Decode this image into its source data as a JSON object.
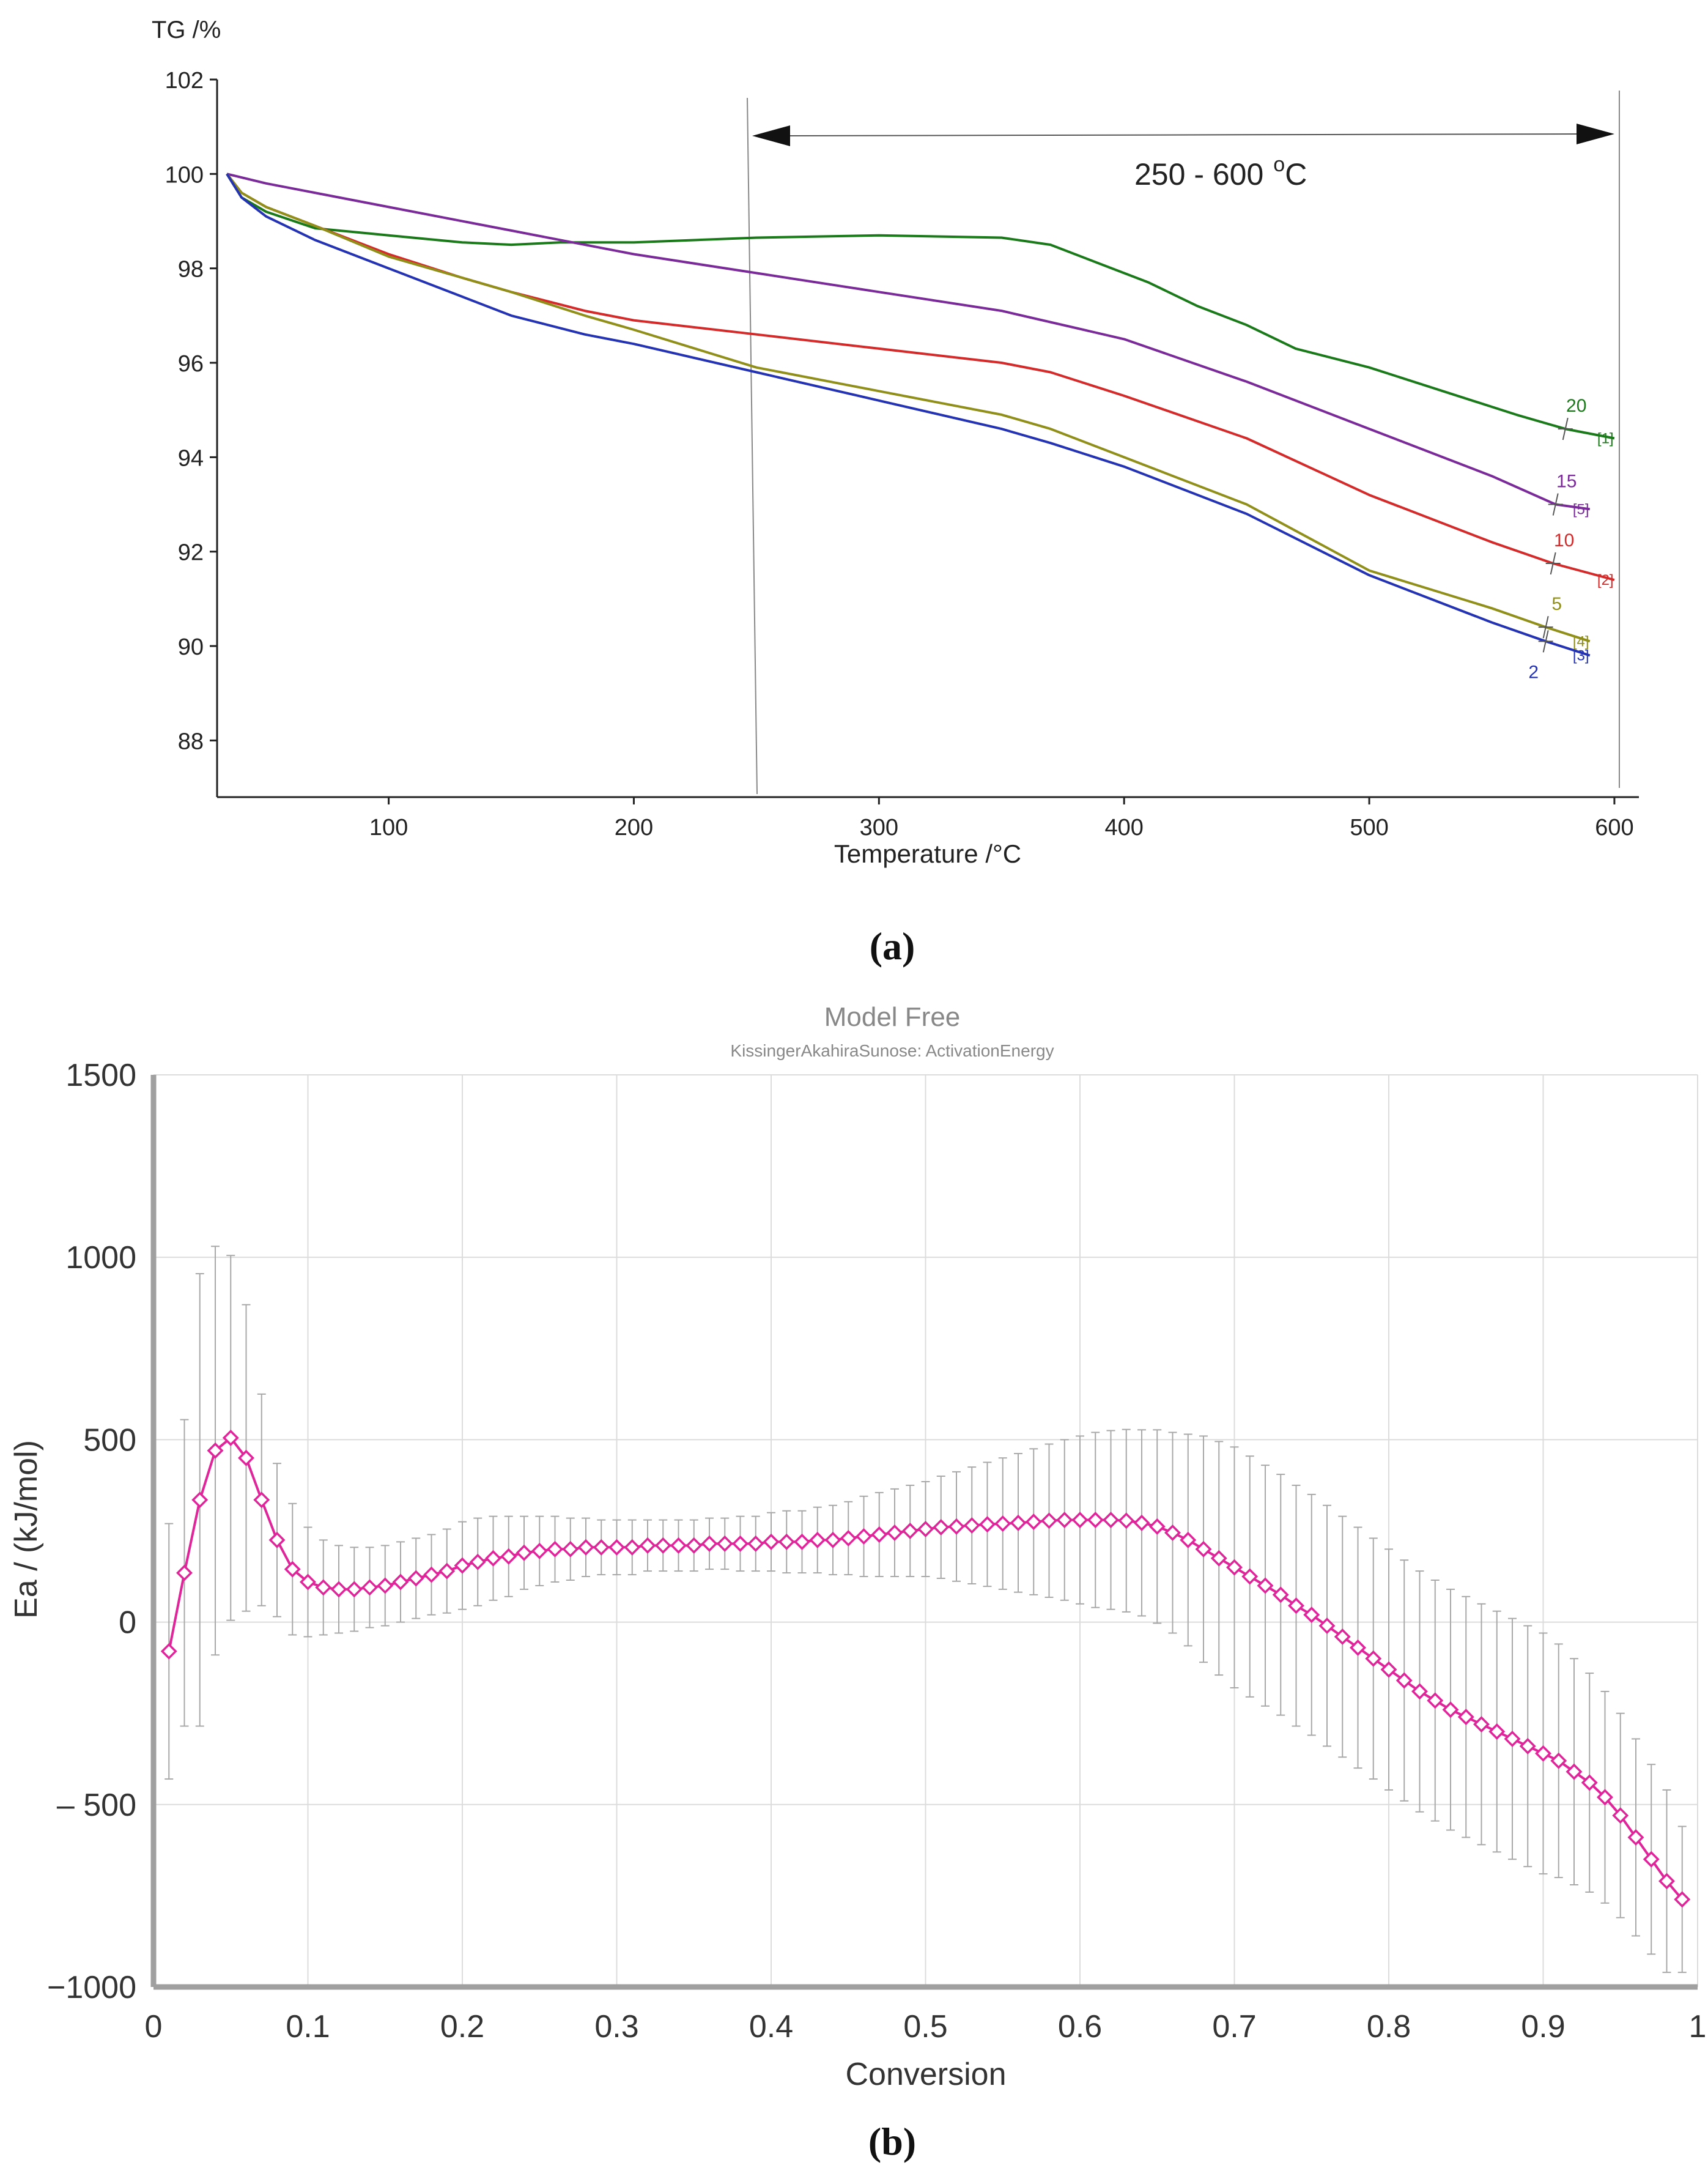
{
  "chart_data": [
    {
      "type": "line",
      "panel_label": "(a)",
      "ylabel": "TG /%",
      "xlabel": "Temperature /°C",
      "xlim": [
        30,
        610
      ],
      "ylim": [
        86.8,
        102
      ],
      "xticks": [
        100,
        200,
        300,
        400,
        500,
        600
      ],
      "yticks": [
        88,
        90,
        92,
        94,
        96,
        98,
        100,
        102
      ],
      "range_annotation": {
        "text": "250 - 600",
        "unit_sup": "o",
        "unit": "C",
        "from": 250,
        "to": 600,
        "y": 101.1
      },
      "series": [
        {
          "name": "20",
          "tag": "[1]",
          "color": "#1a7a1a",
          "marker_x": 572,
          "x": [
            34,
            40,
            50,
            70,
            100,
            130,
            150,
            170,
            200,
            250,
            300,
            350,
            370,
            390,
            410,
            430,
            450,
            470,
            500,
            530,
            560,
            580,
            600
          ],
          "y": [
            100,
            99.5,
            99.2,
            98.85,
            98.7,
            98.55,
            98.5,
            98.55,
            98.55,
            98.65,
            98.7,
            98.65,
            98.5,
            98.1,
            97.7,
            97.2,
            96.8,
            96.3,
            95.9,
            95.4,
            94.9,
            94.6,
            94.4
          ]
        },
        {
          "name": "15",
          "tag": "[5]",
          "color": "#7b2a9a",
          "marker_x": 576,
          "x": [
            34,
            50,
            100,
            150,
            200,
            250,
            300,
            350,
            400,
            450,
            500,
            550,
            576,
            590
          ],
          "y": [
            100,
            99.8,
            99.3,
            98.8,
            98.3,
            97.9,
            97.5,
            97.1,
            96.5,
            95.6,
            94.6,
            93.6,
            93.0,
            92.9
          ]
        },
        {
          "name": "10",
          "tag": "[2]",
          "color": "#d42a2a",
          "marker_x": 575,
          "x": [
            34,
            40,
            50,
            70,
            100,
            130,
            150,
            180,
            200,
            250,
            300,
            350,
            370,
            400,
            450,
            500,
            550,
            575,
            600
          ],
          "y": [
            100,
            99.6,
            99.3,
            98.9,
            98.3,
            97.8,
            97.5,
            97.1,
            96.9,
            96.6,
            96.3,
            96.0,
            95.8,
            95.3,
            94.4,
            93.2,
            92.2,
            91.75,
            91.4
          ]
        },
        {
          "name": "5",
          "tag": "[4]",
          "color": "#8f8f1a",
          "marker_x": 572,
          "x": [
            34,
            40,
            50,
            70,
            100,
            130,
            150,
            180,
            200,
            250,
            300,
            350,
            370,
            400,
            450,
            500,
            550,
            572,
            590
          ],
          "y": [
            100,
            99.6,
            99.3,
            98.9,
            98.25,
            97.8,
            97.5,
            97.0,
            96.7,
            95.9,
            95.4,
            94.9,
            94.6,
            94.0,
            93.0,
            91.6,
            90.8,
            90.4,
            90.1
          ]
        },
        {
          "name": "2",
          "tag": "[3]",
          "color": "#2433b3",
          "marker_x": 572,
          "x": [
            34,
            40,
            50,
            70,
            100,
            130,
            150,
            180,
            200,
            250,
            300,
            350,
            370,
            400,
            450,
            500,
            550,
            572,
            590
          ],
          "y": [
            100,
            99.5,
            99.1,
            98.6,
            98.0,
            97.4,
            97.0,
            96.6,
            96.4,
            95.8,
            95.2,
            94.6,
            94.3,
            93.8,
            92.8,
            91.5,
            90.5,
            90.1,
            89.8
          ]
        }
      ]
    },
    {
      "type": "scatter",
      "panel_label": "(b)",
      "title": "Model Free",
      "subtitle": "KissingerAkahiraSunose: ActivationEnergy",
      "ylabel": "Ea / (kJ/mol)",
      "xlabel": "Conversion",
      "xlim": [
        0,
        1
      ],
      "ylim": [
        -1000,
        1500
      ],
      "grid": true,
      "xticks": [
        "0",
        "0.1",
        "0.2",
        "0.3",
        "0.4",
        "0.5",
        "0.6",
        "0.7",
        "0.8",
        "0.9",
        "1"
      ],
      "yticks": [
        "−1000",
        "– 500",
        "0",
        "500",
        "1000",
        "1500"
      ],
      "ytick_values": [
        -1000,
        -500,
        0,
        500,
        1000,
        1500
      ],
      "marker_color": "#e0259a",
      "errorbar_color": "#a8a8a8",
      "x": [
        0.01,
        0.02,
        0.03,
        0.04,
        0.05,
        0.06,
        0.07,
        0.08,
        0.09,
        0.1,
        0.11,
        0.12,
        0.13,
        0.14,
        0.15,
        0.16,
        0.17,
        0.18,
        0.19,
        0.2,
        0.21,
        0.22,
        0.23,
        0.24,
        0.25,
        0.26,
        0.27,
        0.28,
        0.29,
        0.3,
        0.31,
        0.32,
        0.33,
        0.34,
        0.35,
        0.36,
        0.37,
        0.38,
        0.39,
        0.4,
        0.41,
        0.42,
        0.43,
        0.44,
        0.45,
        0.46,
        0.47,
        0.48,
        0.49,
        0.5,
        0.51,
        0.52,
        0.53,
        0.54,
        0.55,
        0.56,
        0.57,
        0.58,
        0.59,
        0.6,
        0.61,
        0.62,
        0.63,
        0.64,
        0.65,
        0.66,
        0.67,
        0.68,
        0.69,
        0.7,
        0.71,
        0.72,
        0.73,
        0.74,
        0.75,
        0.76,
        0.77,
        0.78,
        0.79,
        0.8,
        0.81,
        0.82,
        0.83,
        0.84,
        0.85,
        0.86,
        0.87,
        0.88,
        0.89,
        0.9,
        0.91,
        0.92,
        0.93,
        0.94,
        0.95,
        0.96,
        0.97,
        0.98,
        0.99
      ],
      "y": [
        -80,
        135,
        335,
        470,
        505,
        450,
        335,
        225,
        145,
        110,
        95,
        90,
        90,
        95,
        100,
        110,
        120,
        130,
        140,
        155,
        165,
        175,
        180,
        190,
        195,
        200,
        200,
        205,
        205,
        205,
        205,
        210,
        210,
        210,
        210,
        215,
        215,
        215,
        215,
        220,
        220,
        220,
        225,
        225,
        230,
        235,
        240,
        245,
        250,
        255,
        260,
        262,
        265,
        268,
        270,
        272,
        275,
        278,
        280,
        280,
        280,
        280,
        278,
        272,
        262,
        245,
        225,
        200,
        175,
        150,
        125,
        100,
        75,
        45,
        20,
        -10,
        -40,
        -70,
        -100,
        -130,
        -160,
        -190,
        -215,
        -240,
        -260,
        -280,
        -300,
        -320,
        -340,
        -360,
        -380,
        -410,
        -440,
        -480,
        -530,
        -590,
        -650,
        -710,
        -760
      ],
      "err": [
        350,
        420,
        620,
        560,
        500,
        420,
        290,
        210,
        180,
        150,
        130,
        120,
        115,
        110,
        110,
        110,
        110,
        110,
        115,
        120,
        120,
        115,
        110,
        100,
        95,
        90,
        85,
        80,
        75,
        75,
        75,
        70,
        70,
        70,
        70,
        70,
        70,
        75,
        75,
        80,
        85,
        85,
        90,
        95,
        100,
        110,
        115,
        120,
        125,
        130,
        140,
        150,
        160,
        170,
        180,
        190,
        200,
        210,
        220,
        230,
        240,
        245,
        250,
        255,
        265,
        275,
        290,
        310,
        320,
        330,
        330,
        330,
        330,
        330,
        330,
        330,
        330,
        330,
        330,
        330,
        330,
        330,
        330,
        330,
        330,
        330,
        330,
        330,
        330,
        330,
        320,
        310,
        300,
        290,
        280,
        270,
        260,
        250,
        200
      ]
    }
  ]
}
